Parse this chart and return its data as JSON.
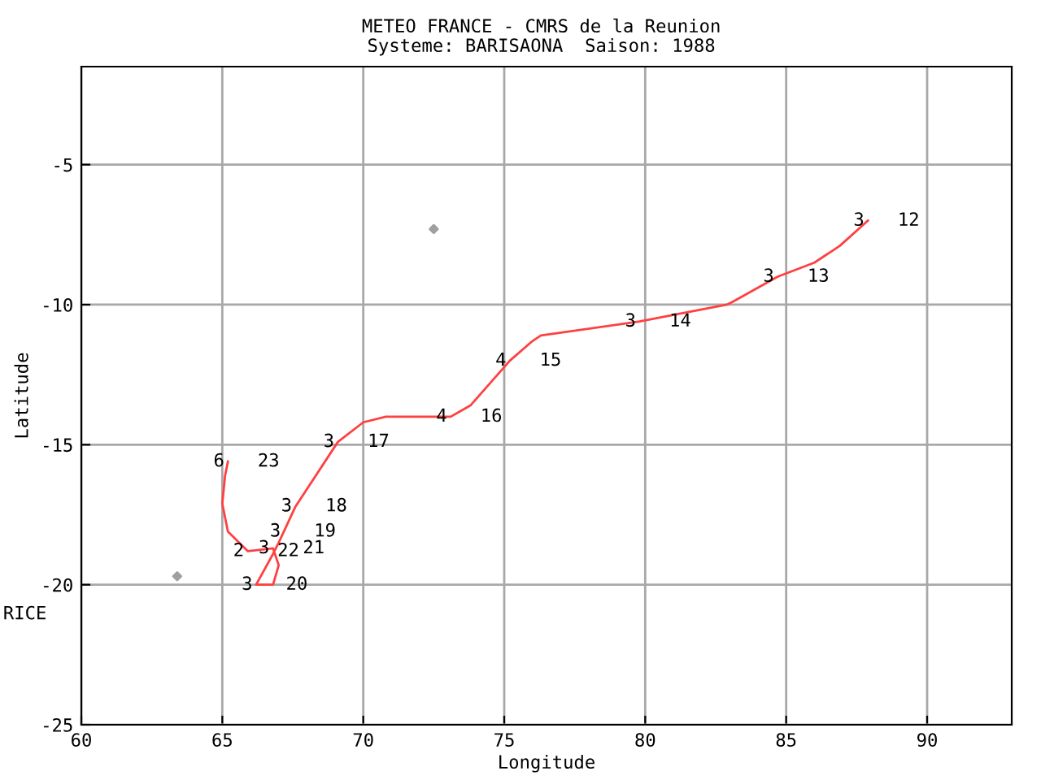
{
  "chart_data": {
    "type": "line",
    "title": "METEO FRANCE - CMRS de la Reunion",
    "subtitle": "Systeme: BARISAONA  Saison: 1988",
    "xlabel": "Longitude",
    "ylabel": "Latitude",
    "xlim": [
      60,
      93
    ],
    "xticks": [
      60,
      65,
      70,
      75,
      80,
      85,
      90
    ],
    "ylim": [
      -25,
      -1.5
    ],
    "yticks": [
      -25,
      -20,
      -15,
      -10,
      -5
    ],
    "grid": true,
    "series": [
      {
        "color": "#ff4040",
        "marker": "none",
        "line_style": "solid",
        "x": [
          87.9,
          86.9,
          86.0,
          84.7,
          83.1,
          82.9,
          79.8,
          76.3,
          76.0,
          75.2,
          73.8,
          73.1,
          70.8,
          70.0,
          69.1,
          67.6,
          67.0,
          66.8,
          66.2,
          66.8,
          67.0,
          66.8,
          65.9,
          65.2,
          65.0,
          65.1,
          65.2
        ],
        "values": [
          -7.0,
          -7.9,
          -8.5,
          -9.0,
          -9.9,
          -10.0,
          -10.6,
          -11.1,
          -11.3,
          -12.0,
          -13.6,
          -14.0,
          -14.0,
          -14.2,
          -14.9,
          -17.2,
          -18.5,
          -18.9,
          -20.0,
          -20.0,
          -19.3,
          -18.7,
          -18.8,
          -18.1,
          -17.1,
          -16.1,
          -15.6
        ]
      },
      {
        "type": "scatter",
        "color": "#a0a0a0",
        "marker": "diamond",
        "x": [
          72.5,
          63.4
        ],
        "values": [
          -7.3,
          -19.7
        ]
      }
    ],
    "annotations": [
      {
        "text": "3",
        "x": 87.9,
        "y": -7.0
      },
      {
        "text": "12",
        "x": 87.9,
        "y": -7.0
      },
      {
        "text": "3",
        "x": 84.7,
        "y": -9.0
      },
      {
        "text": "13",
        "x": 84.7,
        "y": -9.0
      },
      {
        "text": "3",
        "x": 79.8,
        "y": -10.6
      },
      {
        "text": "14",
        "x": 79.8,
        "y": -10.6
      },
      {
        "text": "4",
        "x": 75.2,
        "y": -12.0
      },
      {
        "text": "15",
        "x": 75.2,
        "y": -12.0
      },
      {
        "text": "4",
        "x": 73.1,
        "y": -14.0
      },
      {
        "text": "16",
        "x": 73.1,
        "y": -14.0
      },
      {
        "text": "3",
        "x": 69.1,
        "y": -14.9
      },
      {
        "text": "17",
        "x": 69.1,
        "y": -14.9
      },
      {
        "text": "6",
        "x": 65.2,
        "y": -15.6
      },
      {
        "text": "23",
        "x": 65.2,
        "y": -15.6
      },
      {
        "text": "3",
        "x": 67.6,
        "y": -17.2
      },
      {
        "text": "18",
        "x": 67.6,
        "y": -17.2
      },
      {
        "text": "3",
        "x": 67.2,
        "y": -18.1
      },
      {
        "text": "19",
        "x": 67.2,
        "y": -18.1
      },
      {
        "text": "2",
        "x": 65.9,
        "y": -18.8
      },
      {
        "text": "22",
        "x": 65.9,
        "y": -18.8
      },
      {
        "text": "3",
        "x": 66.8,
        "y": -18.7
      },
      {
        "text": "21",
        "x": 66.8,
        "y": -18.7
      },
      {
        "text": "3",
        "x": 66.2,
        "y": -20.0
      },
      {
        "text": "20",
        "x": 66.2,
        "y": -20.0
      },
      "RICE"
    ]
  }
}
